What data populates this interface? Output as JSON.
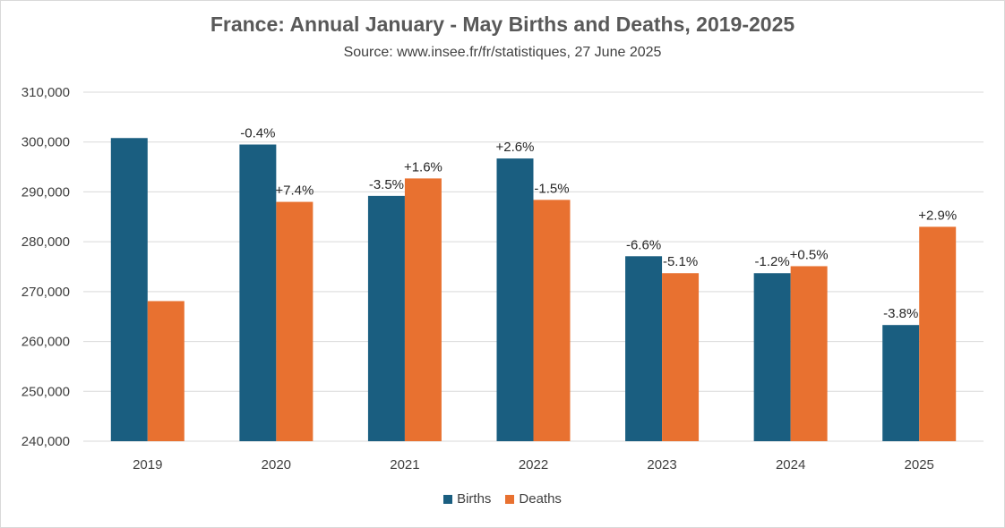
{
  "chart_data": {
    "type": "bar",
    "title": "France: Annual January - May Births and Deaths, 2019-2025",
    "subtitle": "Source: www.insee.fr/fr/statistiques, 27 June 2025",
    "categories": [
      "2019",
      "2020",
      "2021",
      "2022",
      "2023",
      "2024",
      "2025"
    ],
    "series": [
      {
        "name": "Births",
        "color": "#1a5e80",
        "values": [
          300800,
          299500,
          289200,
          296700,
          277100,
          273700,
          263300
        ],
        "labels": [
          "",
          "-0.4%",
          "-3.5%",
          "+2.6%",
          "-6.6%",
          "-1.2%",
          "-3.8%"
        ]
      },
      {
        "name": "Deaths",
        "color": "#e87130",
        "values": [
          268100,
          288000,
          292700,
          288400,
          273700,
          275100,
          283000
        ],
        "labels": [
          "",
          "+7.4%",
          "+1.6%",
          "-1.5%",
          "-5.1%",
          "+0.5%",
          "+2.9%"
        ]
      }
    ],
    "ylim": [
      240000,
      310000
    ],
    "yticks": [
      240000,
      250000,
      260000,
      270000,
      280000,
      290000,
      300000,
      310000
    ],
    "ytick_labels": [
      "240,000",
      "250,000",
      "260,000",
      "270,000",
      "280,000",
      "290,000",
      "300,000",
      "310,000"
    ],
    "grid": true,
    "legend_position": "bottom",
    "xlabel": "",
    "ylabel": ""
  }
}
